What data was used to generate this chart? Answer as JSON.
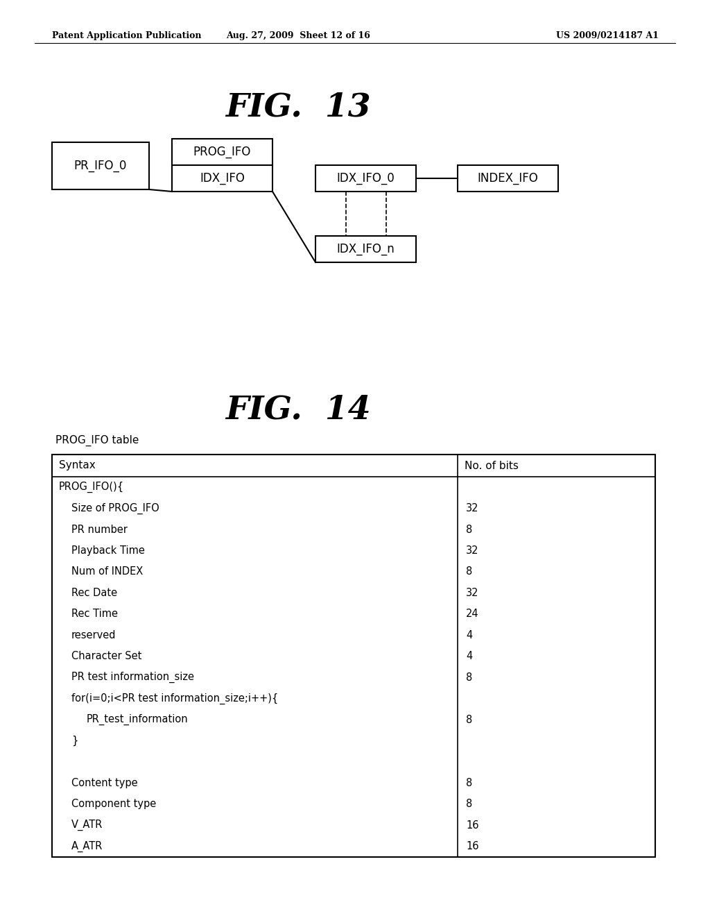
{
  "bg_color": "#ffffff",
  "header_left": "Patent Application Publication",
  "header_center": "Aug. 27, 2009  Sheet 12 of 16",
  "header_right": "US 2009/0214187 A1",
  "fig13_title": "FIG.  13",
  "fig14_title": "FIG.  14",
  "table_label": "PROG_IFO table",
  "table_syntax_col": [
    "PROG_IFO(){",
    "  Size of PROG_IFO",
    "  PR number",
    "  Playback Time",
    "  Num of INDEX",
    "  Rec Date",
    "  Rec Time",
    "  reserved",
    "  Character Set",
    "  PR test information_size",
    "  for(i=0;i<PR test information_size;i++){",
    "    PR_test_information",
    "  }",
    "",
    "  Content type",
    "  Component type",
    "  V_ATR",
    "  A_ATR"
  ],
  "table_bits_col": [
    "",
    "32",
    "8",
    "32",
    "8",
    "32",
    "24",
    "4",
    "4",
    "8",
    "",
    "8",
    "",
    "",
    "8",
    "8",
    "16",
    "16"
  ]
}
